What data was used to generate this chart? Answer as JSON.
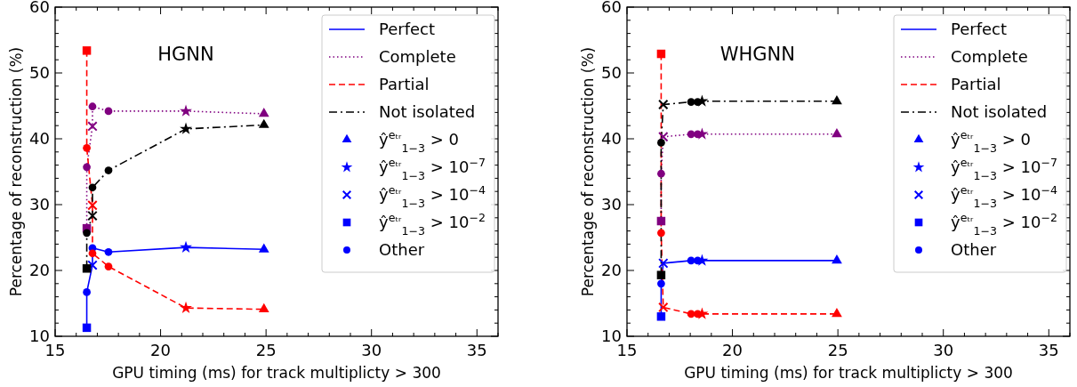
{
  "chart_data": [
    {
      "type": "line",
      "title": "HGNN",
      "xlabel": "GPU timing (ms) for track multiplicty > 300",
      "ylabel": "Percentage of reconstruction (%)",
      "xlim": [
        15,
        36
      ],
      "ylim": [
        10,
        60
      ],
      "xticks": [
        15,
        {
          "value": 16,
          "label": null
        },
        {
          "value": 17,
          "label": null
        },
        {
          "value": 18,
          "label": null
        },
        {
          "value": 19,
          "label": null
        },
        20,
        {
          "value": 21,
          "label": null
        },
        {
          "value": 22,
          "label": null
        },
        {
          "value": 23,
          "label": null
        },
        {
          "value": 24,
          "label": null
        },
        25,
        {
          "value": 26,
          "label": null
        },
        {
          "value": 27,
          "label": null
        },
        {
          "value": 28,
          "label": null
        },
        {
          "value": 29,
          "label": null
        },
        30,
        {
          "value": 31,
          "label": null
        },
        {
          "value": 32,
          "label": null
        },
        {
          "value": 33,
          "label": null
        },
        {
          "value": 34,
          "label": null
        },
        35,
        {
          "value": 36,
          "label": null
        }
      ],
      "yticks": [
        10,
        {
          "value": 12,
          "label": null
        },
        {
          "value": 14,
          "label": null
        },
        {
          "value": 16,
          "label": null
        },
        {
          "value": 18,
          "label": null
        },
        20,
        {
          "value": 22,
          "label": null
        },
        {
          "value": 24,
          "label": null
        },
        {
          "value": 26,
          "label": null
        },
        {
          "value": 28,
          "label": null
        },
        30,
        {
          "value": 32,
          "label": null
        },
        {
          "value": 34,
          "label": null
        },
        {
          "value": 36,
          "label": null
        },
        {
          "value": 38,
          "label": null
        },
        40,
        {
          "value": 42,
          "label": null
        },
        {
          "value": 44,
          "label": null
        },
        {
          "value": 46,
          "label": null
        },
        {
          "value": 48,
          "label": null
        },
        50,
        {
          "value": 52,
          "label": null
        },
        {
          "value": 54,
          "label": null
        },
        {
          "value": 56,
          "label": null
        },
        {
          "value": 58,
          "label": null
        },
        60
      ],
      "legend": "top right",
      "grid": false,
      "series": [
        {
          "name": "Perfect",
          "type": "line",
          "color": "#0000ff",
          "line_style": "solid",
          "marker": "none",
          "x": [
            16.5,
            16.5,
            16.77,
            16.77,
            17.53,
            21.2,
            24.9
          ],
          "values": [
            11.3,
            16.7,
            20.8,
            23.4,
            22.8,
            23.5,
            23.2
          ]
        },
        {
          "name": "Complete",
          "type": "line",
          "color": "#800080",
          "line_style": "dotted",
          "marker": "none",
          "x": [
            16.5,
            16.5,
            16.77,
            16.77,
            17.53,
            21.2,
            24.9
          ],
          "values": [
            26.4,
            35.7,
            41.9,
            44.9,
            44.2,
            44.2,
            43.8
          ]
        },
        {
          "name": "Partial",
          "type": "line",
          "color": "#ff0000",
          "line_style": "dashed",
          "marker": "none",
          "x": [
            16.5,
            16.5,
            16.77,
            16.77,
            17.53,
            21.2,
            24.9
          ],
          "values": [
            53.4,
            38.6,
            29.9,
            22.6,
            20.6,
            14.3,
            14.1
          ]
        },
        {
          "name": "Not isolated",
          "type": "line",
          "color": "#000000",
          "line_style": "dashdot",
          "marker": "none",
          "x": [
            16.5,
            16.5,
            16.77,
            16.77,
            17.53,
            21.2,
            24.9
          ],
          "values": [
            20.3,
            25.7,
            28.3,
            32.6,
            35.2,
            41.5,
            42.1
          ]
        },
        {
          "name": "ŷ$^{eₜᵣ}$$_{1−3}$ > 0",
          "type": "scatter",
          "marker": "triangle",
          "color": "#0000ff",
          "x": [
            24.9,
            24.9,
            24.9,
            24.9
          ],
          "values": [
            23.2,
            43.8,
            14.1,
            42.1
          ],
          "colors": [
            "#0000ff",
            "#800080",
            "#ff0000",
            "#000000"
          ]
        },
        {
          "name": "ŷ$^{eₜᵣ}$$_{1−3}$ > 10$^{−7}$",
          "type": "scatter",
          "marker": "star",
          "color": "#0000ff",
          "x": [
            21.2,
            21.2,
            21.2,
            21.2
          ],
          "values": [
            23.5,
            44.2,
            14.3,
            41.5
          ],
          "colors": [
            "#0000ff",
            "#800080",
            "#ff0000",
            "#000000"
          ]
        },
        {
          "name": "ŷ$^{eₜᵣ}$$_{1−3}$ > 10$^{−4}$",
          "type": "scatter",
          "marker": "cross",
          "color": "#0000ff",
          "x": [
            16.77,
            16.77,
            16.77,
            16.77
          ],
          "values": [
            20.8,
            41.9,
            29.9,
            28.3
          ],
          "colors": [
            "#0000ff",
            "#800080",
            "#ff0000",
            "#000000"
          ]
        },
        {
          "name": "ŷ$^{eₜᵣ}$$_{1−3}$ > 10$^{−2}$",
          "type": "scatter",
          "marker": "square",
          "color": "#0000ff",
          "x": [
            16.5,
            16.5,
            16.5,
            16.5
          ],
          "values": [
            11.3,
            26.4,
            53.4,
            20.3
          ],
          "colors": [
            "#0000ff",
            "#800080",
            "#ff0000",
            "#000000"
          ]
        },
        {
          "name": "Other",
          "type": "scatter",
          "marker": "circle",
          "color": "#0000ff",
          "x": [
            16.5,
            16.77,
            17.53,
            16.5,
            16.77,
            17.53,
            16.5,
            16.77,
            17.53,
            16.5,
            16.77,
            17.53
          ],
          "values": [
            16.7,
            23.4,
            22.8,
            35.7,
            44.9,
            44.2,
            38.6,
            22.6,
            20.6,
            25.7,
            32.6,
            35.2
          ],
          "colors": [
            "#0000ff",
            "#0000ff",
            "#0000ff",
            "#800080",
            "#800080",
            "#800080",
            "#ff0000",
            "#ff0000",
            "#ff0000",
            "#000000",
            "#000000",
            "#000000"
          ]
        }
      ]
    },
    {
      "type": "line",
      "title": "WHGNN",
      "xlabel": "GPU timing (ms) for track multiplicty > 300",
      "ylabel": "Percentage of reconstruction (%)",
      "xlim": [
        15,
        36
      ],
      "ylim": [
        10,
        60
      ],
      "xticks": [
        15,
        {
          "value": 16,
          "label": null
        },
        {
          "value": 17,
          "label": null
        },
        {
          "value": 18,
          "label": null
        },
        {
          "value": 19,
          "label": null
        },
        20,
        {
          "value": 21,
          "label": null
        },
        {
          "value": 22,
          "label": null
        },
        {
          "value": 23,
          "label": null
        },
        {
          "value": 24,
          "label": null
        },
        25,
        {
          "value": 26,
          "label": null
        },
        {
          "value": 27,
          "label": null
        },
        {
          "value": 28,
          "label": null
        },
        {
          "value": 29,
          "label": null
        },
        30,
        {
          "value": 31,
          "label": null
        },
        {
          "value": 32,
          "label": null
        },
        {
          "value": 33,
          "label": null
        },
        {
          "value": 34,
          "label": null
        },
        35,
        {
          "value": 36,
          "label": null
        }
      ],
      "yticks": [
        10,
        {
          "value": 12,
          "label": null
        },
        {
          "value": 14,
          "label": null
        },
        {
          "value": 16,
          "label": null
        },
        {
          "value": 18,
          "label": null
        },
        20,
        {
          "value": 22,
          "label": null
        },
        {
          "value": 24,
          "label": null
        },
        {
          "value": 26,
          "label": null
        },
        {
          "value": 28,
          "label": null
        },
        30,
        {
          "value": 32,
          "label": null
        },
        {
          "value": 34,
          "label": null
        },
        {
          "value": 36,
          "label": null
        },
        {
          "value": 38,
          "label": null
        },
        40,
        {
          "value": 42,
          "label": null
        },
        {
          "value": 44,
          "label": null
        },
        {
          "value": 46,
          "label": null
        },
        {
          "value": 48,
          "label": null
        },
        50,
        {
          "value": 52,
          "label": null
        },
        {
          "value": 54,
          "label": null
        },
        {
          "value": 56,
          "label": null
        },
        {
          "value": 58,
          "label": null
        },
        60
      ],
      "legend": "top right",
      "grid": false,
      "series": [
        {
          "name": "Perfect",
          "type": "line",
          "color": "#0000ff",
          "line_style": "solid",
          "marker": "none",
          "x": [
            16.62,
            16.62,
            16.72,
            18.04,
            18.35,
            18.56,
            24.95
          ],
          "values": [
            13.0,
            18.0,
            21.1,
            21.5,
            21.5,
            21.5,
            21.5
          ]
        },
        {
          "name": "Complete",
          "type": "line",
          "color": "#800080",
          "line_style": "dotted",
          "marker": "none",
          "x": [
            16.62,
            16.62,
            16.72,
            18.04,
            18.35,
            18.56,
            24.95
          ],
          "values": [
            27.5,
            34.7,
            40.3,
            40.7,
            40.7,
            40.7,
            40.7
          ]
        },
        {
          "name": "Partial",
          "type": "line",
          "color": "#ff0000",
          "line_style": "dashed",
          "marker": "none",
          "x": [
            16.62,
            16.62,
            16.72,
            18.04,
            18.35,
            18.56,
            24.95
          ],
          "values": [
            52.9,
            25.7,
            14.4,
            13.4,
            13.4,
            13.4,
            13.4
          ]
        },
        {
          "name": "Not isolated",
          "type": "line",
          "color": "#000000",
          "line_style": "dashdot",
          "marker": "none",
          "x": [
            16.62,
            16.62,
            16.72,
            18.04,
            18.35,
            18.56,
            24.95
          ],
          "values": [
            19.3,
            39.4,
            45.2,
            45.6,
            45.6,
            45.7,
            45.7
          ]
        },
        {
          "name": "ŷ$^{eₜᵣ}$$_{1−3}$ > 0",
          "type": "scatter",
          "marker": "triangle",
          "color": "#0000ff",
          "x": [
            24.95,
            24.95,
            24.95,
            24.95
          ],
          "values": [
            21.5,
            40.7,
            13.4,
            45.7
          ],
          "colors": [
            "#0000ff",
            "#800080",
            "#ff0000",
            "#000000"
          ]
        },
        {
          "name": "ŷ$^{eₜᵣ}$$_{1−3}$ > 10$^{−7}$",
          "type": "scatter",
          "marker": "star",
          "color": "#0000ff",
          "x": [
            18.56,
            18.56,
            18.56,
            18.56
          ],
          "values": [
            21.5,
            40.7,
            13.4,
            45.7
          ],
          "colors": [
            "#0000ff",
            "#800080",
            "#ff0000",
            "#000000"
          ]
        },
        {
          "name": "ŷ$^{eₜᵣ}$$_{1−3}$ > 10$^{−4}$",
          "type": "scatter",
          "marker": "cross",
          "color": "#0000ff",
          "x": [
            16.72,
            16.72,
            16.72,
            16.72
          ],
          "values": [
            21.1,
            40.3,
            14.4,
            45.2
          ],
          "colors": [
            "#0000ff",
            "#800080",
            "#ff0000",
            "#000000"
          ]
        },
        {
          "name": "ŷ$^{eₜᵣ}$$_{1−3}$ > 10$^{−2}$",
          "type": "scatter",
          "marker": "square",
          "color": "#0000ff",
          "x": [
            16.62,
            16.62,
            16.62,
            16.62
          ],
          "values": [
            13.0,
            27.5,
            52.9,
            19.3
          ],
          "colors": [
            "#0000ff",
            "#800080",
            "#ff0000",
            "#000000"
          ]
        },
        {
          "name": "Other",
          "type": "scatter",
          "marker": "circle",
          "color": "#0000ff",
          "x": [
            16.62,
            18.04,
            18.35,
            16.62,
            18.04,
            18.35,
            16.62,
            18.04,
            18.35,
            16.62,
            18.04,
            18.35
          ],
          "values": [
            18.0,
            21.5,
            21.5,
            34.7,
            40.7,
            40.7,
            25.7,
            13.4,
            13.4,
            39.4,
            45.6,
            45.6
          ],
          "colors": [
            "#0000ff",
            "#0000ff",
            "#0000ff",
            "#800080",
            "#800080",
            "#800080",
            "#ff0000",
            "#ff0000",
            "#ff0000",
            "#000000",
            "#000000",
            "#000000"
          ]
        }
      ]
    }
  ]
}
